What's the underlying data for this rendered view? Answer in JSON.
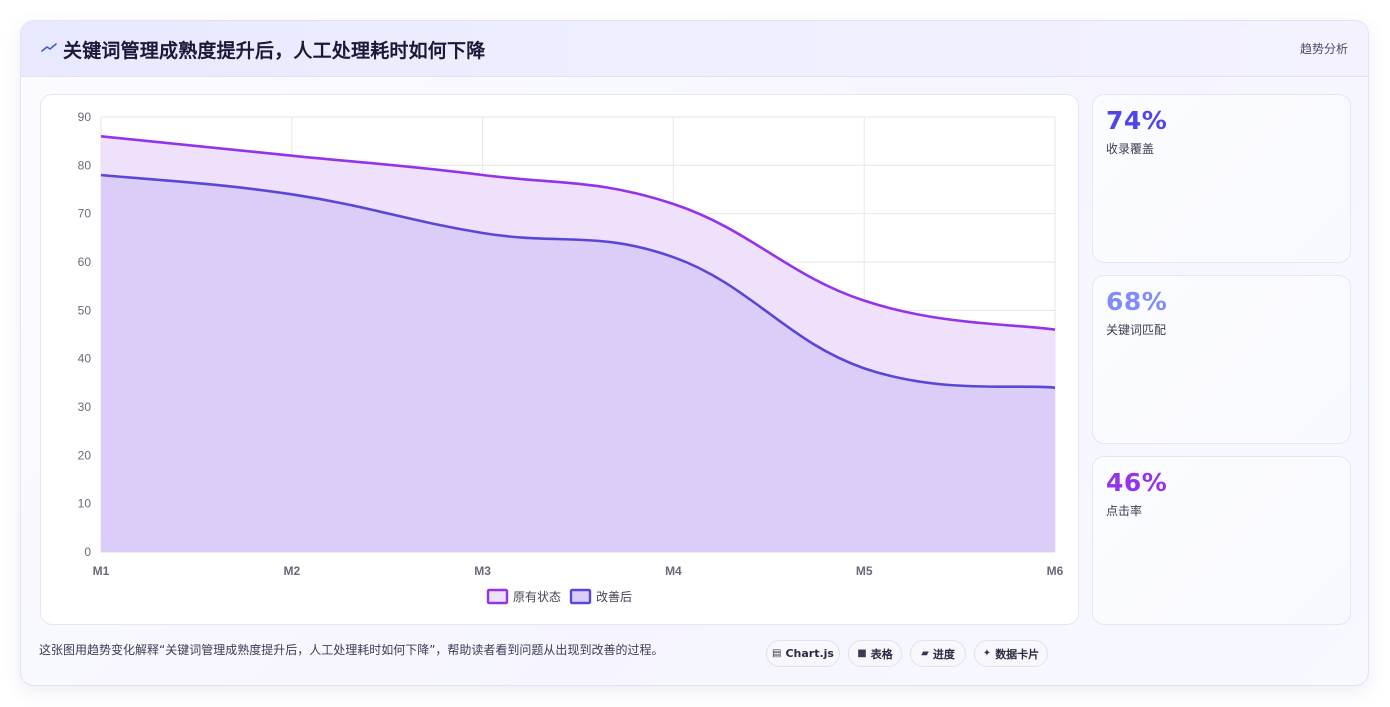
{
  "header": {
    "icon": "trend-line-icon",
    "title": "关键词管理成熟度提升后，人工处理耗时如何下降",
    "tag": "趋势分析"
  },
  "chart_data": {
    "type": "area",
    "categories": [
      "M1",
      "M2",
      "M3",
      "M4",
      "M5",
      "M6"
    ],
    "series": [
      {
        "name": "原有状态",
        "values": [
          86,
          82,
          78,
          72,
          52,
          46
        ],
        "color": "#9333ea",
        "fill": "#efe0fb"
      },
      {
        "name": "改善后",
        "values": [
          78,
          74,
          66,
          61,
          38,
          34
        ],
        "color": "#5b47d6",
        "fill": "#dccdf8"
      }
    ],
    "ylim": [
      0,
      90
    ],
    "yticks": [
      0,
      10,
      20,
      30,
      40,
      50,
      60,
      70,
      80,
      90
    ],
    "grid": true,
    "legend": "bottom"
  },
  "stats": [
    {
      "value": "74%",
      "label": "收录覆盖",
      "color": "#4f46e5"
    },
    {
      "value": "68%",
      "label": "关键词匹配",
      "color": "#818cf8"
    },
    {
      "value": "46%",
      "label": "点击率",
      "color": "#9333ea"
    }
  ],
  "footer": {
    "text": "这张图用趋势变化解释“关键词管理成熟度提升后，人工处理耗时如何下降”，帮助读者看到问题从出现到改善的过程。",
    "chips": [
      {
        "icon": "chart-icon",
        "glyph": "▤",
        "label": "Chart.js"
      },
      {
        "icon": "table-icon",
        "glyph": "■",
        "label": "表格"
      },
      {
        "icon": "progress-icon",
        "glyph": "▰",
        "label": "进度"
      },
      {
        "icon": "sparkle-icon",
        "glyph": "✦",
        "label": "数据卡片"
      }
    ]
  }
}
